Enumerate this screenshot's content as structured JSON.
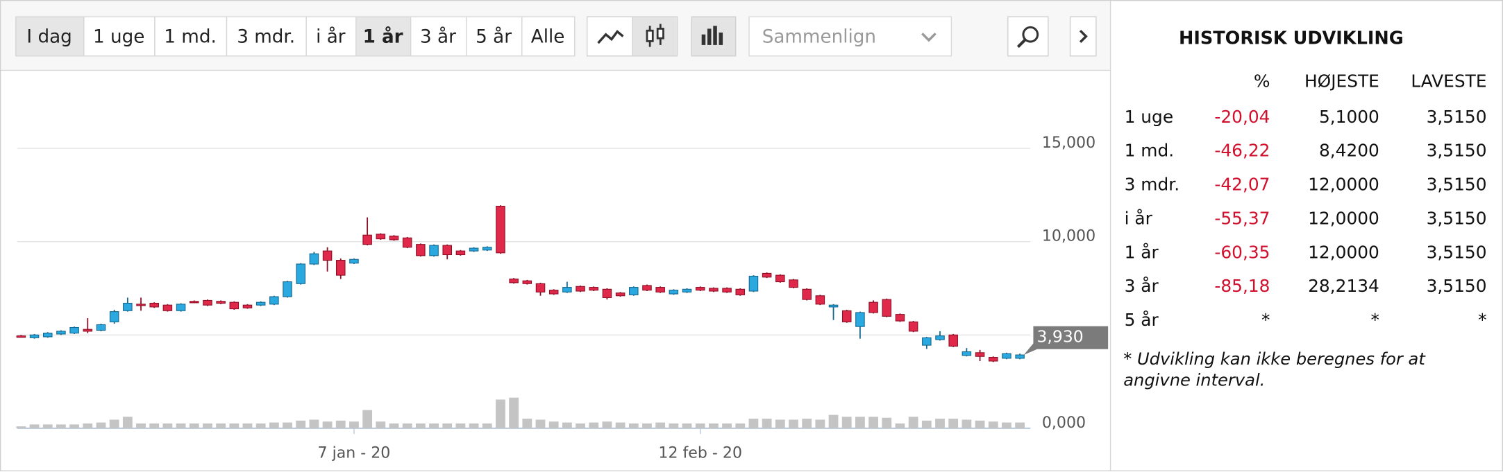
{
  "toolbar": {
    "ranges": [
      "I dag",
      "1 uge",
      "1 md.",
      "3 mdr.",
      "i år",
      "1 år",
      "3 år",
      "5 år",
      "Alle"
    ],
    "selected": 5,
    "compare": "Sammenlign"
  },
  "chart_data": {
    "type": "candlestick",
    "categories": [
      null,
      null,
      null,
      null,
      null,
      null,
      null,
      null,
      null,
      null,
      null,
      null,
      null,
      null,
      null,
      null,
      null,
      null,
      null,
      null,
      null,
      null,
      null,
      null,
      null,
      "7 jan - 20",
      null,
      null,
      null,
      null,
      null,
      null,
      null,
      null,
      null,
      null,
      null,
      null,
      null,
      null,
      null,
      null,
      null,
      null,
      null,
      null,
      null,
      null,
      null,
      null,
      null,
      "12 feb - 20",
      null,
      null,
      null,
      null,
      null,
      null,
      null,
      null,
      null,
      null,
      null,
      null,
      null,
      null,
      null,
      null,
      null,
      null,
      null,
      null,
      null,
      null,
      null,
      null
    ],
    "open": [
      4.95,
      4.85,
      4.9,
      5.05,
      5.1,
      5.3,
      5.25,
      5.7,
      6.3,
      6.65,
      6.7,
      6.6,
      6.3,
      6.8,
      6.85,
      6.8,
      6.75,
      6.6,
      6.6,
      6.65,
      7.05,
      7.75,
      8.8,
      9.5,
      9.0,
      8.85,
      10.35,
      10.4,
      10.3,
      10.2,
      9.85,
      9.25,
      9.8,
      9.5,
      9.5,
      9.55,
      11.9,
      8.0,
      7.9,
      7.75,
      7.4,
      7.3,
      7.6,
      7.55,
      7.45,
      7.25,
      7.15,
      7.65,
      7.55,
      7.2,
      7.3,
      7.55,
      7.5,
      7.5,
      7.45,
      7.35,
      8.3,
      8.2,
      7.95,
      7.45,
      7.1,
      6.5,
      6.3,
      5.45,
      6.75,
      6.9,
      6.1,
      5.7,
      4.45,
      4.75,
      5.0,
      3.9,
      4.05,
      3.8,
      3.75,
      3.75
    ],
    "high": [
      5.0,
      5.05,
      5.15,
      5.25,
      5.45,
      5.9,
      5.6,
      6.35,
      7.0,
      7.0,
      6.75,
      6.65,
      6.7,
      6.85,
      6.9,
      6.85,
      6.8,
      6.65,
      6.8,
      7.1,
      7.9,
      8.85,
      9.45,
      9.7,
      9.1,
      9.1,
      11.3,
      10.45,
      10.35,
      10.25,
      9.9,
      9.85,
      9.85,
      9.55,
      9.7,
      9.75,
      11.95,
      8.05,
      7.95,
      7.8,
      7.45,
      7.85,
      7.65,
      7.6,
      7.5,
      7.3,
      7.6,
      7.7,
      7.6,
      7.45,
      7.5,
      7.6,
      7.55,
      7.55,
      7.5,
      8.2,
      8.35,
      8.25,
      8.0,
      7.5,
      7.15,
      6.65,
      6.35,
      6.25,
      6.85,
      6.95,
      6.15,
      5.75,
      4.9,
      5.2,
      5.05,
      4.3,
      4.2,
      3.85,
      4.05,
      4.0
    ],
    "low": [
      4.88,
      4.8,
      4.85,
      5.0,
      5.05,
      5.1,
      5.2,
      5.6,
      6.25,
      6.3,
      6.45,
      6.25,
      6.25,
      6.7,
      6.55,
      6.65,
      6.35,
      6.4,
      6.55,
      6.6,
      7.0,
      7.7,
      8.75,
      8.4,
      8.0,
      8.8,
      9.8,
      10.1,
      10.05,
      9.65,
      9.2,
      9.2,
      9.05,
      9.25,
      9.45,
      9.5,
      9.35,
      7.75,
      7.7,
      7.1,
      7.15,
      7.25,
      7.3,
      7.35,
      6.9,
      7.05,
      7.1,
      7.35,
      7.25,
      7.15,
      7.25,
      7.35,
      7.3,
      7.25,
      7.1,
      7.3,
      8.05,
      7.8,
      7.5,
      6.85,
      6.6,
      5.8,
      5.65,
      4.8,
      6.15,
      5.95,
      5.7,
      5.15,
      4.25,
      4.7,
      4.35,
      3.85,
      3.6,
      3.55,
      3.7,
      3.7
    ],
    "close": [
      4.92,
      5.0,
      5.1,
      5.2,
      5.4,
      5.2,
      5.55,
      6.25,
      6.7,
      6.6,
      6.5,
      6.3,
      6.65,
      6.75,
      6.6,
      6.7,
      6.4,
      6.45,
      6.75,
      7.05,
      7.85,
      8.8,
      9.35,
      9.0,
      8.2,
      9.05,
      9.85,
      10.15,
      10.1,
      9.7,
      9.25,
      9.8,
      9.3,
      9.3,
      9.65,
      9.7,
      9.4,
      7.8,
      7.75,
      7.3,
      7.2,
      7.55,
      7.35,
      7.4,
      7.0,
      7.1,
      7.55,
      7.4,
      7.3,
      7.4,
      7.45,
      7.4,
      7.35,
      7.3,
      7.15,
      8.15,
      8.1,
      7.85,
      7.55,
      6.9,
      6.65,
      6.6,
      5.7,
      6.2,
      6.2,
      6.0,
      5.75,
      5.2,
      4.85,
      4.95,
      4.4,
      4.1,
      3.85,
      3.6,
      4.0,
      3.93
    ],
    "volume": [
      2,
      4,
      4,
      4,
      4,
      5,
      6,
      9,
      12,
      5,
      5,
      5,
      5,
      5,
      5,
      5,
      5,
      5,
      5,
      6,
      6,
      8,
      9,
      7,
      8,
      7,
      19,
      7,
      5,
      5,
      5,
      5,
      5,
      5,
      5,
      5,
      30,
      32,
      10,
      9,
      7,
      6,
      5,
      6,
      7,
      6,
      5,
      5,
      6,
      5,
      5,
      5,
      5,
      5,
      5,
      10,
      10,
      9,
      9,
      10,
      9,
      14,
      12,
      12,
      12,
      11,
      5,
      12,
      8,
      10,
      10,
      9,
      8,
      7,
      6,
      6
    ],
    "volume_lim": [
      0,
      40
    ],
    "up_color": "#2aa8e0",
    "down_color": "#e0284a",
    "volume_color": "#c4c4c4",
    "ylim": [
      0,
      19
    ],
    "yticks": [
      {
        "value": 0,
        "label": "0,000"
      },
      {
        "value": 5,
        "label": null
      },
      {
        "value": 10,
        "label": "10,000"
      },
      {
        "value": 15,
        "label": "15,000"
      }
    ],
    "grid": true,
    "last_price": {
      "value": 3.93,
      "label": "3,930"
    }
  },
  "history": {
    "title": "HISTORISK UDVIKLING",
    "columns": [
      "%",
      "HØJESTE",
      "LAVESTE"
    ],
    "rows": [
      [
        "1 uge",
        "-20,04",
        "5,1000",
        "3,5150"
      ],
      [
        "1 md.",
        "-46,22",
        "8,4200",
        "3,5150"
      ],
      [
        "3 mdr.",
        "-42,07",
        "12,0000",
        "3,5150"
      ],
      [
        "i år",
        "-55,37",
        "12,0000",
        "3,5150"
      ],
      [
        "1 år",
        "-60,35",
        "12,0000",
        "3,5150"
      ],
      [
        "3 år",
        "-85,18",
        "28,2134",
        "3,5150"
      ],
      [
        "5 år",
        "*",
        "*",
        "*"
      ]
    ],
    "note": "* Udvikling kan ikke beregnes for at angivne interval."
  }
}
